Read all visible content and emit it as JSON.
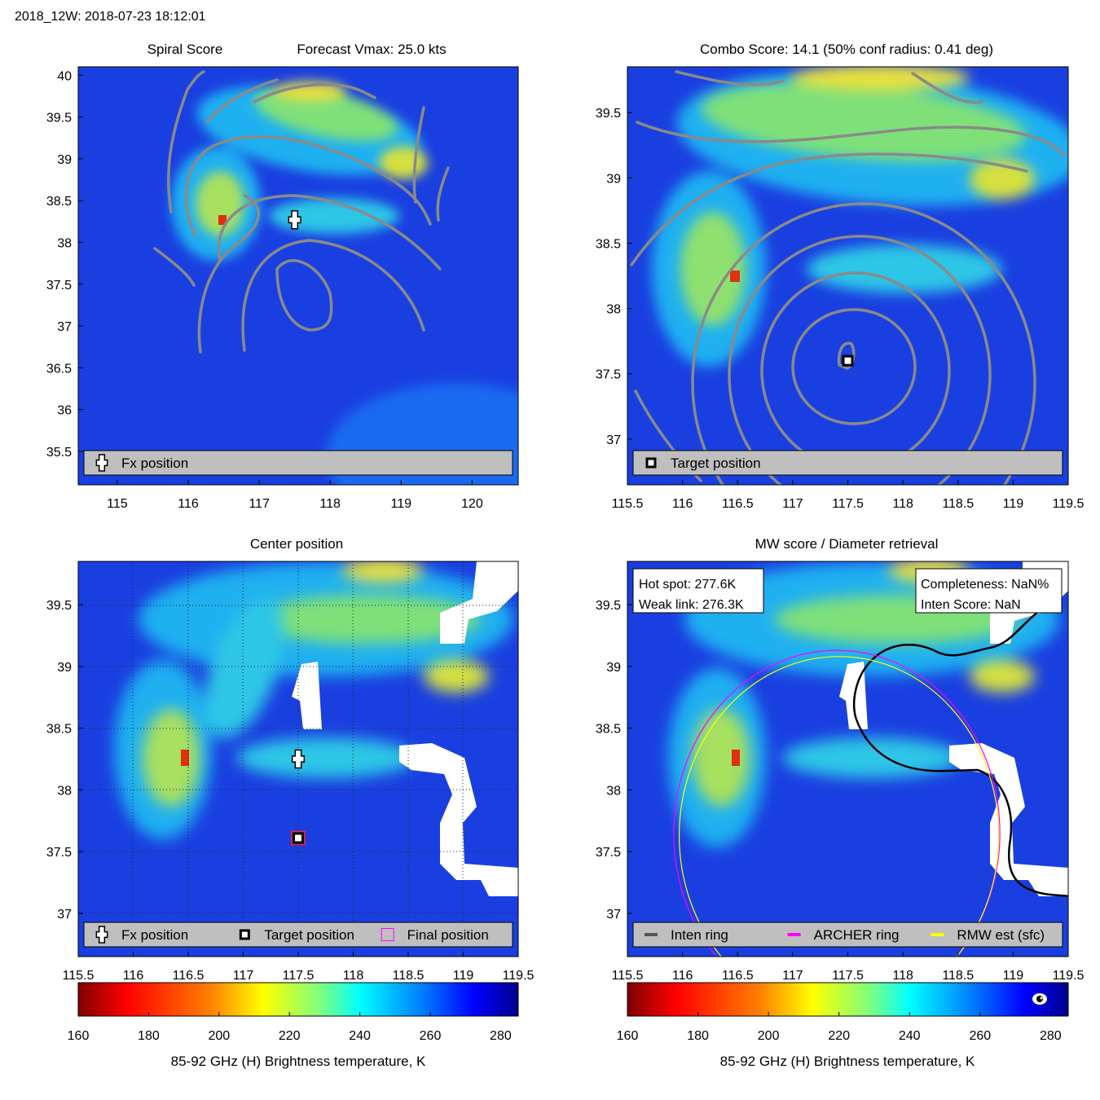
{
  "figure_title": "2018_12W: 2018-07-23 18:12:01",
  "colors": {
    "contour": "#8a8a8a",
    "legend_bg": "#bfbfbf",
    "archer_ring": "#ff00ff",
    "rmw_ring": "#ffff00",
    "inten_ring": "#555555",
    "land_edge": "#000000"
  },
  "colormap": [
    "#7f0000",
    "#ff0000",
    "#ff7f00",
    "#ffff00",
    "#7fff7f",
    "#00ffff",
    "#007fff",
    "#0000ff",
    "#00008f"
  ],
  "chart_data": [
    {
      "id": "spiral",
      "type": "heatmap",
      "title": "Spiral Score",
      "subtitle": "Forecast Vmax: 25.0 kts",
      "xlim": [
        114.45,
        120.65
      ],
      "ylim": [
        35.1,
        40.1
      ],
      "xticks": [
        "115",
        "116",
        "117",
        "118",
        "119",
        "120"
      ],
      "yticks": [
        "35.5",
        "36",
        "36.5",
        "37",
        "37.5",
        "38",
        "38.5",
        "39",
        "39.5",
        "40"
      ],
      "markers": [
        {
          "kind": "fx",
          "x": 117.5,
          "y": 38.27
        }
      ],
      "legend": [
        {
          "kind": "fx",
          "label": "Fx position"
        }
      ]
    },
    {
      "id": "combo",
      "type": "heatmap",
      "title": "Combo Score: 14.1  (50% conf radius: 0.41 deg)",
      "xlim": [
        115.5,
        119.5
      ],
      "ylim": [
        36.65,
        39.85
      ],
      "xticks": [
        "115.5",
        "116",
        "116.5",
        "117",
        "117.5",
        "118",
        "118.5",
        "119",
        "119.5"
      ],
      "yticks": [
        "37",
        "37.5",
        "38",
        "38.5",
        "39",
        "39.5"
      ],
      "markers": [
        {
          "kind": "target",
          "x": 117.5,
          "y": 37.6
        }
      ],
      "legend": [
        {
          "kind": "target",
          "label": "Target position"
        }
      ]
    },
    {
      "id": "center",
      "type": "heatmap",
      "title": "Center position",
      "xlim": [
        115.5,
        119.5
      ],
      "ylim": [
        36.65,
        39.85
      ],
      "xticks": [
        "115.5",
        "116",
        "116.5",
        "117",
        "117.5",
        "118",
        "118.5",
        "119",
        "119.5"
      ],
      "yticks": [
        "37",
        "37.5",
        "38",
        "38.5",
        "39",
        "39.5"
      ],
      "markers": [
        {
          "kind": "fx",
          "x": 117.5,
          "y": 38.25
        },
        {
          "kind": "target",
          "x": 117.5,
          "y": 37.61
        },
        {
          "kind": "final",
          "x": 117.5,
          "y": 37.61
        }
      ],
      "legend": [
        {
          "kind": "fx",
          "label": "Fx position"
        },
        {
          "kind": "target",
          "label": "Target position"
        },
        {
          "kind": "final",
          "label": "Final position"
        }
      ]
    },
    {
      "id": "mw",
      "type": "heatmap",
      "title": "MW score / Diameter retrieval",
      "xlim": [
        115.5,
        119.5
      ],
      "ylim": [
        36.65,
        39.85
      ],
      "xticks": [
        "115.5",
        "116",
        "116.5",
        "117",
        "117.5",
        "118",
        "118.5",
        "119",
        "119.5"
      ],
      "yticks": [
        "37",
        "37.5",
        "38",
        "38.5",
        "39",
        "39.5"
      ],
      "infobox_left": [
        "Hot spot: 277.6K",
        "Weak link: 276.3K"
      ],
      "infobox_right": [
        "Completeness: NaN%",
        "Inten Score: NaN"
      ],
      "rings": [
        {
          "kind": "archer",
          "cx": 117.4,
          "cy": 37.65,
          "r": 1.48
        },
        {
          "kind": "rmw",
          "cx": 117.42,
          "cy": 37.63,
          "r": 1.45
        }
      ],
      "legend": [
        {
          "kind": "inten",
          "label": "Inten ring"
        },
        {
          "kind": "archer",
          "label": "ARCHER ring"
        },
        {
          "kind": "rmw",
          "label": "RMW est (sfc)"
        }
      ]
    }
  ],
  "colorbars": [
    {
      "id": "cbar-left",
      "ticks": [
        "160",
        "180",
        "200",
        "220",
        "240",
        "260",
        "280"
      ],
      "range": [
        160,
        285
      ],
      "label": "85-92 GHz (H) Brightness temperature, K"
    },
    {
      "id": "cbar-right",
      "ticks": [
        "160",
        "180",
        "200",
        "220",
        "240",
        "260",
        "280"
      ],
      "range": [
        160,
        285
      ],
      "label": "85-92 GHz (H) Brightness temperature, K"
    }
  ]
}
